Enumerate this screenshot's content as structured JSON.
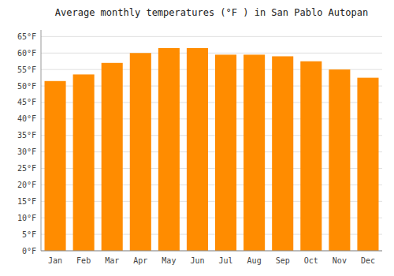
{
  "chart_data": {
    "type": "bar",
    "title": "Average monthly temperatures (°F ) in San Pablo Autopan",
    "categories": [
      "Jan",
      "Feb",
      "Mar",
      "Apr",
      "May",
      "Jun",
      "Jul",
      "Aug",
      "Sep",
      "Oct",
      "Nov",
      "Dec"
    ],
    "values": [
      51.5,
      53.5,
      57.0,
      60.0,
      61.5,
      61.5,
      59.5,
      59.5,
      59.0,
      57.5,
      55.0,
      52.5
    ],
    "color": "#FF8C00",
    "ylim": [
      0,
      67
    ],
    "yticks": [
      {
        "value": 0,
        "label": "0°F"
      },
      {
        "value": 5,
        "label": "5°F"
      },
      {
        "value": 10,
        "label": "10°F"
      },
      {
        "value": 15,
        "label": "15°F"
      },
      {
        "value": 20,
        "label": "20°F"
      },
      {
        "value": 25,
        "label": "25°F"
      },
      {
        "value": 30,
        "label": "30°F"
      },
      {
        "value": 35,
        "label": "35°F"
      },
      {
        "value": 40,
        "label": "40°F"
      },
      {
        "value": 45,
        "label": "45°F"
      },
      {
        "value": 50,
        "label": "50°F"
      },
      {
        "value": 55,
        "label": "55°F"
      },
      {
        "value": 60,
        "label": "60°F"
      },
      {
        "value": 65,
        "label": "65°F"
      }
    ],
    "grid": true
  }
}
